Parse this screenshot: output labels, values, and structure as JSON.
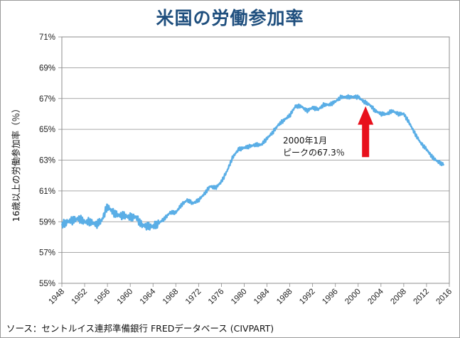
{
  "chart_data": {
    "type": "line",
    "title": "米国の労働参加率",
    "xlabel": "",
    "ylabel": "16歳以上の労働参加率（％）",
    "source": "ソース：セントルイス連邦準備銀行 FREDデータベース (CIVPART)",
    "xlim": [
      1948,
      2016
    ],
    "ylim": [
      55,
      71
    ],
    "grid": true,
    "legend": "none",
    "x_ticks": [
      "1948",
      "1952",
      "1956",
      "1960",
      "1964",
      "1968",
      "1972",
      "1976",
      "1980",
      "1984",
      "1988",
      "1992",
      "1996",
      "2000",
      "2004",
      "2008",
      "2012",
      "2016"
    ],
    "y_ticks": [
      "55%",
      "57%",
      "59%",
      "61%",
      "63%",
      "65%",
      "67%",
      "69%",
      "71%"
    ],
    "line_color": "#5aaee6",
    "series": [
      {
        "name": "",
        "x": [
          1948,
          1949,
          1950,
          1951,
          1952,
          1953,
          1954,
          1955,
          1956,
          1957,
          1958,
          1959,
          1960,
          1961,
          1962,
          1963,
          1964,
          1965,
          1966,
          1967,
          1968,
          1969,
          1970,
          1971,
          1972,
          1973,
          1974,
          1975,
          1976,
          1977,
          1978,
          1979,
          1980,
          1981,
          1982,
          1983,
          1984,
          1985,
          1986,
          1987,
          1988,
          1989,
          1990,
          1991,
          1992,
          1993,
          1994,
          1995,
          1996,
          1997,
          1998,
          1999,
          2000,
          2001,
          2002,
          2003,
          2004,
          2005,
          2006,
          2007,
          2008,
          2009,
          2010,
          2011,
          2012,
          2013,
          2014,
          2015
        ],
        "y": [
          58.8,
          59.0,
          59.1,
          59.2,
          59.0,
          59.0,
          58.8,
          59.1,
          60.0,
          59.6,
          59.4,
          59.4,
          59.3,
          59.3,
          58.8,
          58.7,
          58.7,
          58.9,
          59.2,
          59.6,
          59.6,
          60.1,
          60.4,
          60.2,
          60.4,
          60.8,
          61.3,
          61.2,
          61.6,
          62.3,
          63.2,
          63.7,
          63.8,
          63.9,
          64.0,
          64.0,
          64.4,
          64.8,
          65.3,
          65.6,
          65.9,
          66.5,
          66.5,
          66.2,
          66.4,
          66.3,
          66.6,
          66.6,
          66.8,
          67.1,
          67.1,
          67.1,
          67.1,
          66.8,
          66.6,
          66.2,
          66.0,
          66.0,
          66.2,
          66.0,
          66.0,
          65.4,
          64.7,
          64.1,
          63.7,
          63.2,
          62.9,
          62.7
        ]
      }
    ],
    "annotation": {
      "lines": [
        "2000年1月",
        "ピークの67.3％"
      ],
      "arrow_color": "#e8101c",
      "arrow_x": 2001.3,
      "arrow_tip_y": 66.5,
      "arrow_base_y": 63.2
    }
  }
}
